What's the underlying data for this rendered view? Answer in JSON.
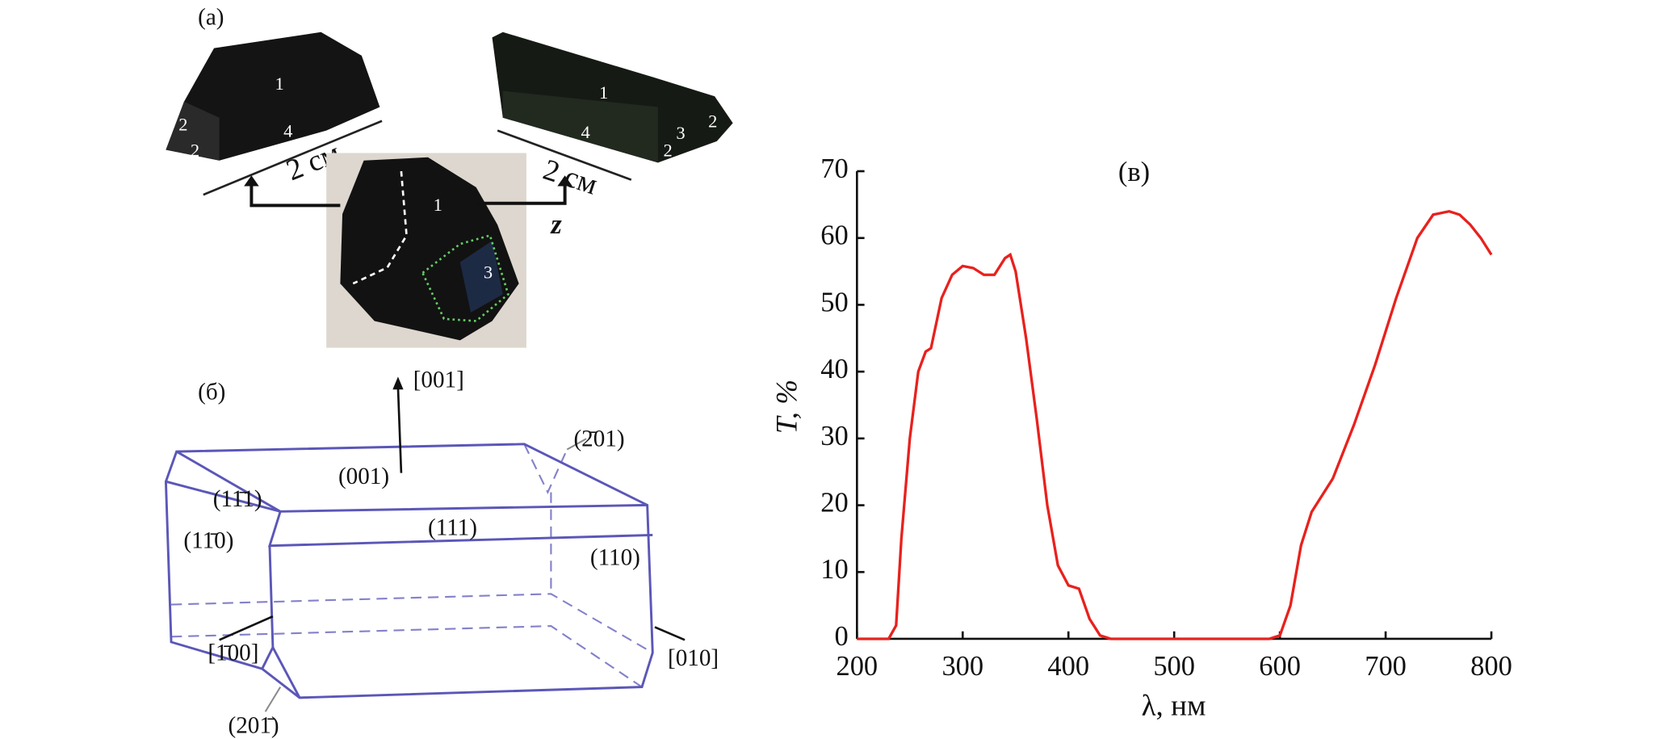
{
  "panel_a": {
    "label": "(a)",
    "left_crystal_faces": [
      "1",
      "2",
      "2",
      "4"
    ],
    "right_crystal_faces": [
      "1",
      "4",
      "2",
      "3",
      "2"
    ],
    "middle_photo_faces": [
      "1",
      "3"
    ],
    "scale_labels": [
      "2 см",
      "2 см"
    ],
    "axis_label": "z"
  },
  "panel_b": {
    "label": "(б)",
    "directions": [
      "[001]",
      "[1̄00]",
      "[010]"
    ],
    "faces": [
      "(001)",
      "(2̄01)",
      "(11̄1)",
      "(11̄0)",
      "(111)",
      "(110)",
      "(201̄)"
    ]
  },
  "chart_data": {
    "type": "line",
    "annotation": "(в)",
    "x_label": "λ, нм",
    "y_label": "T, %",
    "x": [
      200,
      230,
      237,
      242,
      250,
      258,
      265,
      270,
      280,
      290,
      300,
      310,
      320,
      330,
      340,
      345,
      350,
      360,
      370,
      380,
      390,
      400,
      410,
      420,
      430,
      440,
      500,
      590,
      600,
      610,
      620,
      630,
      650,
      670,
      690,
      710,
      730,
      745,
      760,
      770,
      780,
      790,
      800
    ],
    "series": [
      {
        "color": "#e8211d",
        "values": [
          0,
          0,
          2,
          15,
          30,
          40,
          43,
          43.5,
          51,
          54.5,
          55.8,
          55.5,
          54.5,
          54.5,
          57,
          57.5,
          55,
          45,
          33,
          20,
          11,
          8,
          7.5,
          3,
          0.5,
          0,
          0,
          0,
          0.5,
          5,
          14,
          19,
          24,
          32,
          41,
          51,
          60,
          63.5,
          64,
          63.5,
          62,
          60,
          57.5
        ]
      }
    ],
    "xlim": [
      200,
      800
    ],
    "ylim": [
      0,
      70
    ],
    "xticks": [
      200,
      300,
      400,
      500,
      600,
      700,
      800
    ],
    "yticks": [
      0,
      10,
      20,
      30,
      40,
      50,
      60,
      70
    ]
  }
}
